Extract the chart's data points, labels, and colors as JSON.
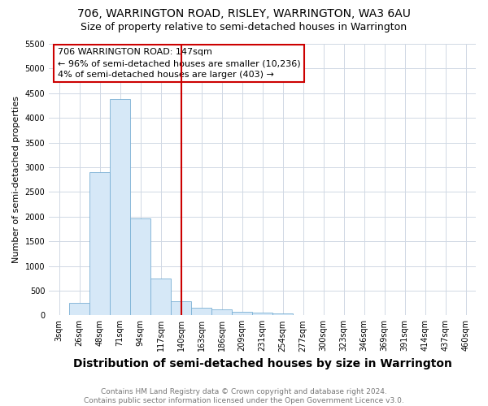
{
  "title": "706, WARRINGTON ROAD, RISLEY, WARRINGTON, WA3 6AU",
  "subtitle": "Size of property relative to semi-detached houses in Warrington",
  "xlabel": "Distribution of semi-detached houses by size in Warrington",
  "ylabel": "Number of semi-detached properties",
  "footer_line1": "Contains HM Land Registry data © Crown copyright and database right 2024.",
  "footer_line2": "Contains public sector information licensed under the Open Government Licence v3.0.",
  "annotation_line1": "706 WARRINGTON ROAD: 147sqm",
  "annotation_line2": "← 96% of semi-detached houses are smaller (10,236)",
  "annotation_line3": "4% of semi-detached houses are larger (403) →",
  "bar_color": "#d6e8f7",
  "bar_edge_color": "#7ab0d4",
  "vline_color": "#cc0000",
  "vline_x_index": 6.5,
  "ylim": [
    0,
    5500
  ],
  "yticks": [
    0,
    500,
    1000,
    1500,
    2000,
    2500,
    3000,
    3500,
    4000,
    4500,
    5000,
    5500
  ],
  "bins": [
    "3sqm",
    "26sqm",
    "48sqm",
    "71sqm",
    "94sqm",
    "117sqm",
    "140sqm",
    "163sqm",
    "186sqm",
    "209sqm",
    "231sqm",
    "254sqm",
    "277sqm",
    "300sqm",
    "323sqm",
    "346sqm",
    "369sqm",
    "391sqm",
    "414sqm",
    "437sqm",
    "460sqm"
  ],
  "values": [
    0,
    250,
    2900,
    4380,
    1960,
    750,
    290,
    150,
    120,
    65,
    50,
    40,
    0,
    0,
    0,
    0,
    0,
    0,
    0,
    0,
    0
  ],
  "background_color": "#ffffff",
  "grid_color": "#d0d8e4",
  "title_fontsize": 10,
  "subtitle_fontsize": 9,
  "xlabel_fontsize": 10,
  "ylabel_fontsize": 8,
  "tick_fontsize": 7,
  "annotation_fontsize": 8,
  "annotation_box_edge_color": "#cc0000",
  "footer_fontsize": 6.5,
  "footer_color": "#777777"
}
